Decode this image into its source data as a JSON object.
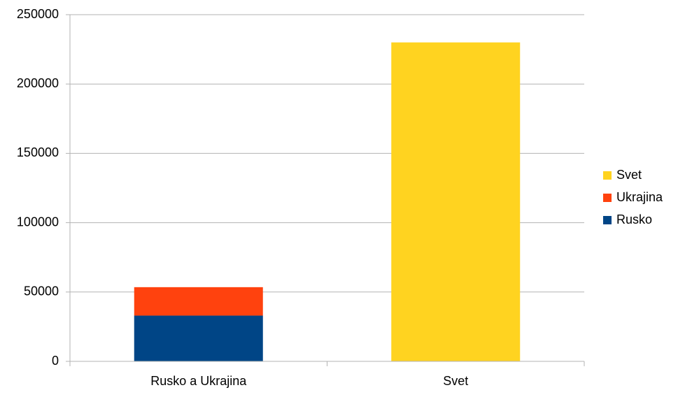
{
  "chart_data": {
    "type": "stacked-bar",
    "categories": [
      "Rusko a Ukrajina",
      "Svet"
    ],
    "series": [
      {
        "name": "Rusko",
        "color": "#004586",
        "values": [
          33000,
          null
        ]
      },
      {
        "name": "Ukrajina",
        "color": "#ff420e",
        "values": [
          20500,
          null
        ]
      },
      {
        "name": "Svet",
        "color": "#ffd320",
        "values": [
          null,
          230000
        ]
      }
    ],
    "ylim": [
      0,
      250000
    ],
    "yticks": [
      0,
      50000,
      100000,
      150000,
      200000,
      250000
    ],
    "grid": true,
    "legend": "right"
  }
}
